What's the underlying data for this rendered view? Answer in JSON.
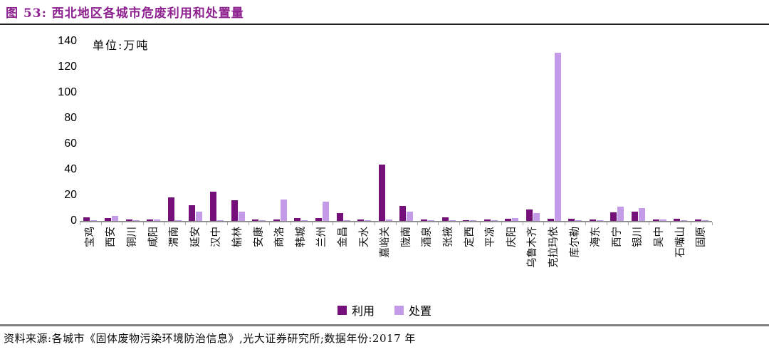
{
  "header": {
    "fig_label": "图 53:",
    "title": "西北地区各城市危废利用和处置量"
  },
  "chart_data": {
    "type": "bar",
    "title": "西北地区各城市危废利用和处置量",
    "unit_label": "单位:万吨",
    "ylabel": "万吨",
    "ylim": [
      0,
      140
    ],
    "yticks": [
      0,
      20,
      40,
      60,
      80,
      100,
      120,
      140
    ],
    "grid": false,
    "legend_position": "bottom",
    "categories": [
      "宝鸡",
      "西安",
      "铜川",
      "咸阳",
      "渭南",
      "延安",
      "汉中",
      "榆林",
      "安康",
      "商洛",
      "韩城",
      "兰州",
      "金昌",
      "天水",
      "嘉峪关",
      "陇南",
      "酒泉",
      "张掖",
      "定西",
      "平凉",
      "庆阳",
      "乌鲁木齐",
      "克拉玛依",
      "库尔勒",
      "海东",
      "西宁",
      "银川",
      "吴中",
      "石嘴山",
      "固原"
    ],
    "series": [
      {
        "name": "利用",
        "color": "#75107B",
        "values": [
          3,
          2.5,
          1,
          1,
          18.5,
          12,
          23,
          16,
          1,
          1,
          2,
          2.5,
          6,
          1,
          44,
          11.5,
          1,
          3,
          0.5,
          1,
          1.5,
          9,
          1.5,
          1.5,
          1,
          6.5,
          7,
          1,
          1.5,
          1
        ]
      },
      {
        "name": "处置",
        "color": "#C39BE8",
        "values": [
          0.5,
          4,
          0.5,
          1,
          0.5,
          7,
          0.5,
          7,
          0.5,
          16.5,
          0.5,
          15,
          0.5,
          0.5,
          1,
          7,
          0.5,
          0.5,
          0.3,
          0.5,
          2,
          6,
          131,
          0.5,
          0.5,
          11,
          10,
          1,
          0.5,
          0.5
        ]
      }
    ]
  },
  "footer": {
    "source": "资料来源:各城市《固体废物污染环境防治信息》,光大证券研究所;数据年份:2017 年"
  }
}
